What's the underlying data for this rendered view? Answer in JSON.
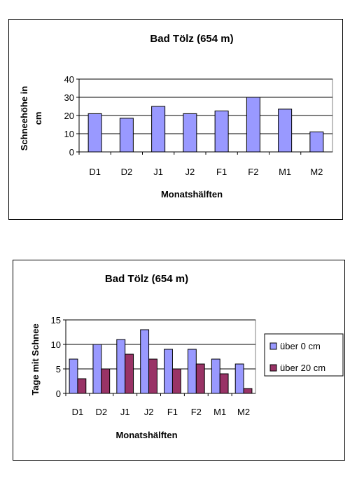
{
  "colors": {
    "series1": "#9999FF",
    "series2": "#993366",
    "plot_bg": "#ffffff",
    "gridline": "#000000"
  },
  "chart_data": [
    {
      "type": "bar",
      "title": "Bad Tölz (654 m)",
      "xlabel": "Monatshälften",
      "ylabel": "Schneehöhe in cm",
      "ylabel_lines": [
        "Schneehöhe in",
        "cm"
      ],
      "categories": [
        "D1",
        "D2",
        "J1",
        "J2",
        "F1",
        "F2",
        "M1",
        "M2"
      ],
      "ylim": [
        0,
        40
      ],
      "yticks": [
        0,
        10,
        20,
        30,
        40
      ],
      "grid": true,
      "legend": "none",
      "series": [
        {
          "values": [
            21,
            18.5,
            25,
            21,
            22.5,
            30,
            23.5,
            11
          ]
        }
      ]
    },
    {
      "type": "bar",
      "title": "Bad Tölz (654 m)",
      "xlabel": "Monatshälften",
      "ylabel": "Tage mit Schnee",
      "ylabel_lines": [
        "Tage mit Schnee"
      ],
      "categories": [
        "D1",
        "D2",
        "J1",
        "J2",
        "F1",
        "F2",
        "M1",
        "M2"
      ],
      "ylim": [
        0,
        15
      ],
      "yticks": [
        0,
        5,
        10,
        15
      ],
      "grid": true,
      "legend": "right",
      "series": [
        {
          "name": "über 0 cm",
          "values": [
            7,
            10,
            11,
            13,
            9,
            9,
            7,
            6
          ]
        },
        {
          "name": "über 20 cm",
          "values": [
            3,
            5,
            8,
            7,
            5,
            6,
            4,
            1
          ]
        }
      ]
    }
  ]
}
